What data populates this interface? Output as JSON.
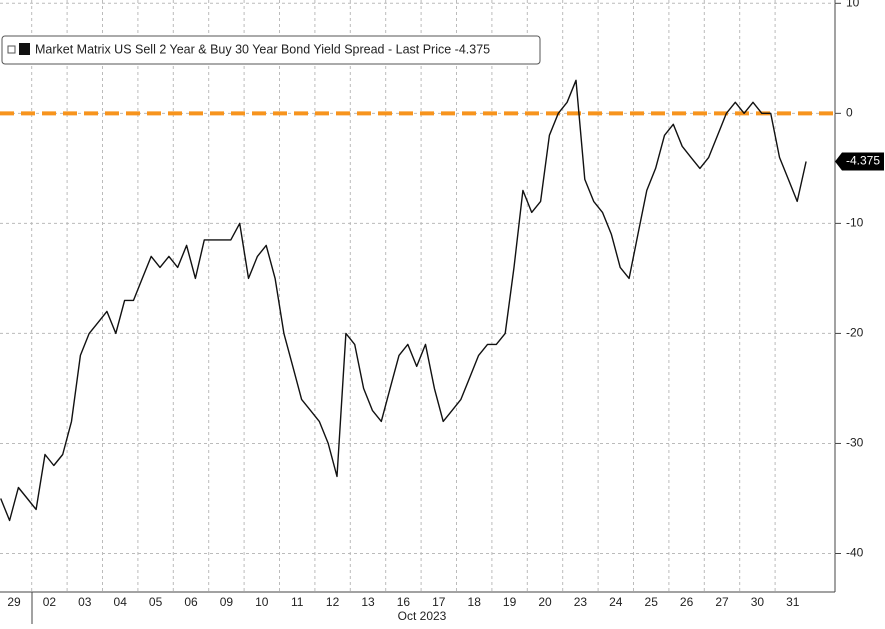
{
  "chart_data": {
    "type": "line",
    "series": [
      {
        "name": "Market Matrix US Sell 2 Year & Buy 30 Year Bond Yield Spread - Last Price -4.375",
        "color": "#111111",
        "values": [
          -35,
          -37,
          -34,
          -35,
          -36,
          -31,
          -32,
          -31,
          -28,
          -22,
          -20,
          -19,
          -18,
          -20,
          -17,
          -17,
          -15,
          -13,
          -14,
          -13,
          -14,
          -12,
          -15,
          -11.5,
          -11.5,
          -11.5,
          -11.5,
          -10,
          -15,
          -13,
          -12,
          -15,
          -20,
          -23,
          -26,
          -27,
          -28,
          -30,
          -33,
          -20,
          -21,
          -25,
          -27,
          -28,
          -25,
          -22,
          -21,
          -23,
          -21,
          -25,
          -28,
          -27,
          -26,
          -24,
          -22,
          -21,
          -21,
          -20,
          -14,
          -7,
          -9,
          -8,
          -2,
          0,
          1,
          3,
          -6,
          -8,
          -9,
          -11,
          -14,
          -15,
          -11,
          -7,
          -5,
          -2,
          -1,
          -3,
          -4,
          -5,
          -4,
          -2,
          0,
          1,
          0,
          1,
          0,
          0,
          -4,
          -6,
          -8,
          -4.375
        ]
      }
    ],
    "categories": [
      "29",
      null,
      null,
      null,
      "02",
      null,
      null,
      null,
      "03",
      null,
      null,
      null,
      "04",
      null,
      null,
      null,
      "05",
      null,
      null,
      null,
      "06",
      null,
      null,
      null,
      "09",
      null,
      null,
      null,
      "10",
      null,
      null,
      null,
      "11",
      null,
      null,
      null,
      "12",
      null,
      null,
      null,
      "13",
      null,
      null,
      null,
      "16",
      null,
      null,
      null,
      "17",
      null,
      null,
      null,
      "18",
      null,
      null,
      null,
      "19",
      null,
      null,
      null,
      "20",
      null,
      null,
      null,
      "23",
      null,
      null,
      null,
      "24",
      null,
      null,
      null,
      "25",
      null,
      null,
      null,
      "26",
      null,
      null,
      null,
      "27",
      null,
      null,
      null,
      "30",
      null,
      null,
      null,
      "31",
      null,
      null,
      null
    ],
    "x_label": "Oct 2023",
    "ylim": [
      -43.5,
      10.3
    ],
    "yticks": [
      10,
      0,
      -10,
      -20,
      -30,
      -40
    ],
    "reference_line": 0,
    "reference_color": "#f7941d",
    "grid": true
  }
}
